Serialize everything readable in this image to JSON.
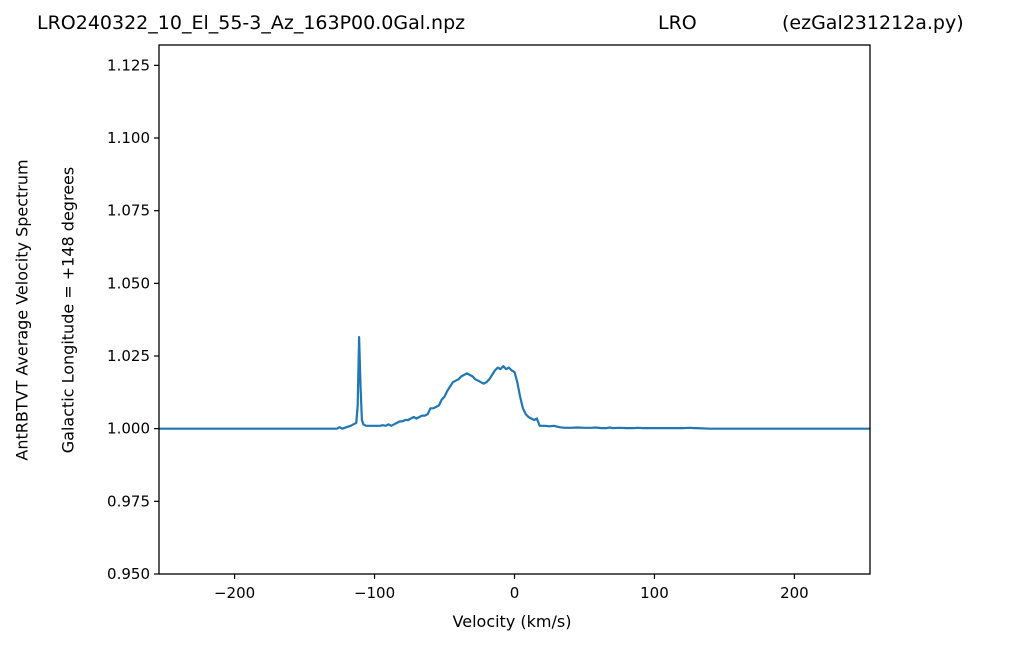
{
  "header": {
    "title_left": "LRO240322_10_El_55-3_Az_163P00.0Gal.npz",
    "title_center": "LRO",
    "title_right": "(ezGal231212a.py)"
  },
  "chart_data": {
    "type": "line",
    "title": "LRO240322_10_El_55-3_Az_163P00.0Gal.npz",
    "xlabel": "Velocity (km/s)",
    "ylabel_outer": "AntRBTVT Average Velocity Spectrum",
    "ylabel_inner": "Galactic Longitude = +148 degrees",
    "xlim": [
      -254,
      254
    ],
    "ylim": [
      0.95,
      1.132
    ],
    "xticks": [
      -200,
      -100,
      0,
      100,
      200
    ],
    "xtick_labels": [
      "−200",
      "−100",
      "0",
      "100",
      "200"
    ],
    "yticks": [
      0.95,
      0.975,
      1.0,
      1.025,
      1.05,
      1.075,
      1.1,
      1.125
    ],
    "ytick_labels": [
      "0.950",
      "0.975",
      "1.000",
      "1.025",
      "1.050",
      "1.075",
      "1.100",
      "1.125"
    ],
    "grid": false,
    "series_color": "#1f77b4",
    "series": [
      {
        "x": [
          -254,
          -127,
          -125,
          -123,
          -120,
          -117,
          -115,
          -113,
          -112,
          -111,
          -110,
          -109,
          -108,
          -106,
          -104,
          -100,
          -96,
          -94,
          -92,
          -90,
          -88,
          -86,
          -84,
          -82,
          -80,
          -78,
          -76,
          -74,
          -72,
          -70,
          -68,
          -66,
          -64,
          -62,
          -60,
          -58,
          -56,
          -54,
          -52,
          -50,
          -48,
          -46,
          -44,
          -42,
          -40,
          -38,
          -36,
          -34,
          -32,
          -30,
          -28,
          -26,
          -24,
          -22,
          -20,
          -18,
          -16,
          -14,
          -12,
          -10,
          -8,
          -6,
          -4,
          -2,
          0,
          2,
          4,
          6,
          8,
          10,
          12,
          14,
          16,
          18,
          20,
          22,
          25,
          28,
          32,
          36,
          40,
          45,
          50,
          55,
          58,
          62,
          66,
          68,
          70,
          75,
          80,
          85,
          88,
          92,
          100,
          110,
          120,
          126,
          128,
          130,
          140,
          254
        ],
        "y": [
          1.0,
          1.0,
          1.0005,
          1.0,
          1.0005,
          1.001,
          1.0015,
          1.002,
          1.008,
          1.0315,
          1.015,
          1.003,
          1.0015,
          1.001,
          1.001,
          1.001,
          1.001,
          1.0012,
          1.001,
          1.0015,
          1.001,
          1.0015,
          1.002,
          1.0025,
          1.0025,
          1.003,
          1.003,
          1.0035,
          1.004,
          1.0035,
          1.004,
          1.0045,
          1.0045,
          1.005,
          1.007,
          1.007,
          1.0075,
          1.008,
          1.01,
          1.011,
          1.013,
          1.0145,
          1.016,
          1.0165,
          1.017,
          1.018,
          1.0185,
          1.019,
          1.0185,
          1.018,
          1.017,
          1.0165,
          1.016,
          1.0155,
          1.016,
          1.017,
          1.0185,
          1.02,
          1.021,
          1.0205,
          1.0215,
          1.0205,
          1.021,
          1.02,
          1.0195,
          1.016,
          1.011,
          1.007,
          1.005,
          1.004,
          1.0035,
          1.003,
          1.0035,
          1.001,
          1.001,
          1.001,
          1.0008,
          1.001,
          1.0005,
          1.0003,
          1.0003,
          1.0004,
          1.0003,
          1.0003,
          1.0004,
          1.0002,
          1.0002,
          1.0004,
          1.0002,
          1.0003,
          1.0002,
          1.0002,
          1.0003,
          1.0002,
          1.0002,
          1.0002,
          1.0002,
          1.0003,
          1.0002,
          1.0002,
          1.0,
          1.0
        ]
      }
    ]
  }
}
